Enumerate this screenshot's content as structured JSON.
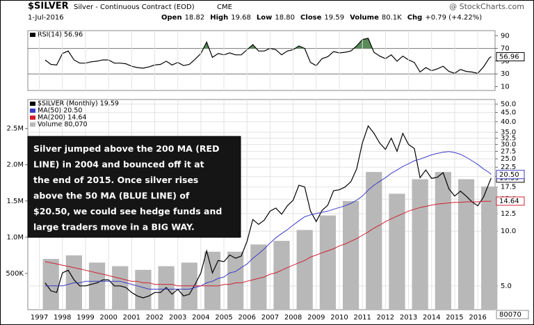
{
  "header": {
    "ticker": "$SILVER",
    "name": "Silver - Continuous Contract (EOD)",
    "exchange": "CME",
    "date": "1-Jul-2016",
    "quote": [
      [
        "Open",
        "18.82"
      ],
      [
        "High",
        "19.68"
      ],
      [
        "Low",
        "18.80"
      ],
      [
        "Close",
        "19.59"
      ],
      [
        "Volume",
        "80.1K"
      ],
      [
        "Chg",
        "+0.79 (+4.22%)"
      ]
    ],
    "source": "@ StockCharts.com"
  },
  "chart_data": [
    {
      "type": "line",
      "xlim": [
        1996.5,
        2016.75
      ],
      "ylim": [
        4,
        98
      ],
      "yticks": [
        10,
        30,
        50,
        70,
        90
      ],
      "bands": [
        30,
        70
      ],
      "x": [
        1997.25,
        1997.5,
        1997.75,
        1998,
        1998.25,
        1998.5,
        1998.75,
        1999,
        1999.25,
        1999.5,
        1999.75,
        2000,
        2000.25,
        2000.5,
        2000.75,
        2001,
        2001.25,
        2001.5,
        2001.75,
        2002,
        2002.25,
        2002.5,
        2002.75,
        2003,
        2003.25,
        2003.5,
        2003.75,
        2004,
        2004.25,
        2004.5,
        2004.75,
        2005,
        2005.25,
        2005.5,
        2005.75,
        2006,
        2006.25,
        2006.5,
        2006.75,
        2007,
        2007.25,
        2007.5,
        2007.75,
        2008,
        2008.25,
        2008.5,
        2008.75,
        2009,
        2009.25,
        2009.5,
        2009.75,
        2010,
        2010.25,
        2010.5,
        2010.75,
        2011,
        2011.25,
        2011.5,
        2011.75,
        2012,
        2012.25,
        2012.5,
        2012.75,
        2013,
        2013.25,
        2013.5,
        2013.75,
        2014,
        2014.25,
        2014.5,
        2014.75,
        2015,
        2015.25,
        2015.5,
        2015.75,
        2016,
        2016.25,
        2016.5,
        2016.58
      ],
      "series": [
        {
          "name": "RSI(14) 56.96",
          "color": "#000000",
          "last_label": "56.96",
          "values": [
            52,
            45,
            44,
            62,
            66,
            52,
            47,
            47,
            49,
            50,
            52,
            52,
            47,
            47,
            46,
            42,
            40,
            39,
            41,
            44,
            45,
            50,
            44,
            48,
            43,
            45,
            53,
            62,
            80,
            56,
            62,
            60,
            63,
            60,
            60,
            68,
            76,
            66,
            66,
            70,
            68,
            60,
            66,
            68,
            74,
            70,
            48,
            43,
            54,
            57,
            65,
            63,
            64,
            66,
            74,
            84,
            86,
            64,
            58,
            54,
            60,
            50,
            58,
            52,
            48,
            33,
            40,
            35,
            38,
            42,
            34,
            31,
            37,
            34,
            33,
            31,
            41,
            55,
            56.96
          ]
        }
      ]
    },
    {
      "type": "line",
      "log": true,
      "grid": true,
      "xlim": [
        1996.5,
        2016.75
      ],
      "ylim": [
        3.7,
        53
      ],
      "xticks": [
        1997,
        1998,
        1999,
        2000,
        2001,
        2002,
        2003,
        2004,
        2005,
        2006,
        2007,
        2008,
        2009,
        2010,
        2011,
        2012,
        2013,
        2014,
        2015,
        2016
      ],
      "yticks": [
        {
          "value": 5,
          "label": "5.0"
        },
        {
          "value": 10,
          "label": "10.0"
        },
        {
          "value": 12.5,
          "label": "12.5"
        },
        {
          "value": 15,
          "label": "15.0"
        },
        {
          "value": 17.5,
          "label": "17.5"
        },
        {
          "value": 20,
          "label": "20.0"
        },
        {
          "value": 22.5,
          "label": "22.5"
        },
        {
          "value": 25,
          "label": "25.0"
        },
        {
          "value": 27.5,
          "label": "27.5"
        },
        {
          "value": 30,
          "label": "30.0"
        },
        {
          "value": 32.5,
          "label": "32.5"
        },
        {
          "value": 35,
          "label": "35.0"
        },
        {
          "value": 40,
          "label": "40.0"
        },
        {
          "value": 45,
          "label": "45.0"
        },
        {
          "value": 50,
          "label": "50.0"
        }
      ],
      "x": [
        1997.25,
        1997.5,
        1997.75,
        1998,
        1998.25,
        1998.5,
        1998.75,
        1999,
        1999.25,
        1999.5,
        1999.75,
        2000,
        2000.25,
        2000.5,
        2000.75,
        2001,
        2001.25,
        2001.5,
        2001.75,
        2002,
        2002.25,
        2002.5,
        2002.75,
        2003,
        2003.25,
        2003.5,
        2003.75,
        2004,
        2004.25,
        2004.5,
        2004.75,
        2005,
        2005.25,
        2005.5,
        2005.75,
        2006,
        2006.25,
        2006.5,
        2006.75,
        2007,
        2007.25,
        2007.5,
        2007.75,
        2008,
        2008.25,
        2008.5,
        2008.75,
        2009,
        2009.25,
        2009.5,
        2009.75,
        2010,
        2010.25,
        2010.5,
        2010.75,
        2011,
        2011.25,
        2011.5,
        2011.75,
        2012,
        2012.25,
        2012.5,
        2012.75,
        2013,
        2013.25,
        2013.5,
        2013.75,
        2014,
        2014.25,
        2014.5,
        2014.75,
        2015,
        2015.25,
        2015.5,
        2015.75,
        2016,
        2016.25,
        2016.5,
        2016.58
      ],
      "series": [
        {
          "name": "$SILVER (Monthly) 19.59",
          "color": "#000000",
          "last_label": "19.59",
          "values": [
            5.2,
            4.7,
            4.6,
            5.9,
            6.1,
            5.4,
            5.0,
            5.0,
            5.1,
            5.2,
            5.4,
            5.4,
            5.0,
            5.0,
            4.9,
            4.6,
            4.4,
            4.3,
            4.4,
            4.6,
            4.6,
            4.9,
            4.5,
            4.8,
            4.4,
            4.5,
            5.1,
            5.9,
            7.8,
            5.9,
            6.9,
            6.8,
            7.4,
            7.1,
            7.3,
            8.8,
            11.6,
            10.9,
            11.5,
            12.9,
            13.4,
            12.4,
            13.8,
            14.8,
            17.9,
            17.5,
            12.9,
            11.3,
            13.0,
            13.9,
            16.7,
            16.9,
            17.5,
            18.7,
            22.0,
            30.6,
            37.9,
            34.6,
            30.5,
            28.2,
            32.5,
            27.5,
            34.5,
            30.0,
            28.5,
            19.7,
            21.7,
            19.5,
            19.8,
            21.0,
            17.1,
            15.6,
            16.6,
            15.6,
            14.5,
            13.8,
            15.4,
            18.5,
            19.59
          ]
        },
        {
          "name": "MA(50) 20.50",
          "color": "#3a3ac8",
          "last_label": "20.50",
          "values": [
            5.0,
            5.0,
            5.0,
            5.0,
            5.1,
            5.2,
            5.2,
            5.3,
            5.3,
            5.3,
            5.3,
            5.3,
            5.3,
            5.3,
            5.2,
            5.1,
            5.0,
            4.9,
            4.8,
            4.8,
            4.8,
            4.8,
            4.8,
            4.8,
            4.8,
            4.8,
            4.9,
            5.0,
            5.2,
            5.3,
            5.5,
            5.6,
            5.9,
            6.0,
            6.3,
            6.6,
            7.1,
            7.5,
            8.0,
            8.6,
            9.2,
            9.7,
            10.2,
            10.8,
            11.4,
            12.0,
            12.3,
            12.5,
            12.7,
            12.9,
            13.2,
            13.5,
            13.8,
            14.2,
            14.8,
            15.6,
            16.8,
            17.9,
            18.8,
            19.7,
            20.8,
            21.7,
            22.7,
            23.5,
            24.4,
            24.9,
            25.6,
            26.3,
            26.8,
            27.2,
            27.4,
            27.1,
            26.5,
            25.5,
            24.4,
            23.3,
            22.0,
            21.0,
            20.5
          ]
        },
        {
          "name": "MA(200) 14.64",
          "color": "#d02030",
          "last_label": "14.64",
          "values": [
            6.8,
            6.7,
            6.6,
            6.5,
            6.4,
            6.3,
            6.2,
            6.1,
            6.0,
            5.9,
            5.8,
            5.7,
            5.6,
            5.5,
            5.4,
            5.3,
            5.3,
            5.2,
            5.2,
            5.1,
            5.1,
            5.1,
            5.1,
            5.0,
            5.0,
            5.0,
            5.0,
            5.0,
            5.0,
            5.0,
            5.0,
            5.1,
            5.1,
            5.2,
            5.2,
            5.3,
            5.4,
            5.5,
            5.6,
            5.8,
            5.9,
            6.1,
            6.3,
            6.5,
            6.7,
            6.9,
            7.2,
            7.4,
            7.6,
            7.8,
            8.0,
            8.3,
            8.5,
            8.8,
            9.1,
            9.5,
            9.9,
            10.4,
            10.8,
            11.3,
            11.7,
            12.1,
            12.5,
            12.9,
            13.2,
            13.5,
            13.7,
            13.9,
            14.1,
            14.2,
            14.3,
            14.4,
            14.4,
            14.5,
            14.5,
            14.5,
            14.6,
            14.6,
            14.64
          ]
        }
      ],
      "volume": {
        "name": "Volume 80,070",
        "color": "#b8b8b8",
        "last_label": "80070",
        "x": [
          1997.5,
          1998.5,
          1999.5,
          2000.5,
          2001.5,
          2002.5,
          2003.5,
          2004.5,
          2005.5,
          2006.5,
          2007.5,
          2008.5,
          2009.5,
          2010.5,
          2011.5,
          2012.5,
          2013.5,
          2014.5,
          2015.5,
          2016.5
        ],
        "values": [
          700000,
          750000,
          650000,
          600000,
          550000,
          600000,
          650000,
          800000,
          800000,
          900000,
          950000,
          1100000,
          1300000,
          1500000,
          1900000,
          1600000,
          1800000,
          1900000,
          1800000,
          1700000
        ],
        "ylim": [
          0,
          2900000
        ],
        "yticks": [
          {
            "value": 500000,
            "label": "500K"
          },
          {
            "value": 1000000,
            "label": "1.0M"
          },
          {
            "value": 1500000,
            "label": "1.5M"
          },
          {
            "value": 2000000,
            "label": "2.0M"
          },
          {
            "value": 2500000,
            "label": "2.5M"
          }
        ]
      },
      "annotation": [
        "Silver jumped above the 200 MA (RED",
        "LINE) in 2004 and bounced off it at",
        "the end of 2015.  Once silver rises",
        "above the 50 MA (BLUE LINE) of",
        "$20.50, we could see hedge funds and",
        "large traders move in a BIG WAY."
      ]
    }
  ]
}
